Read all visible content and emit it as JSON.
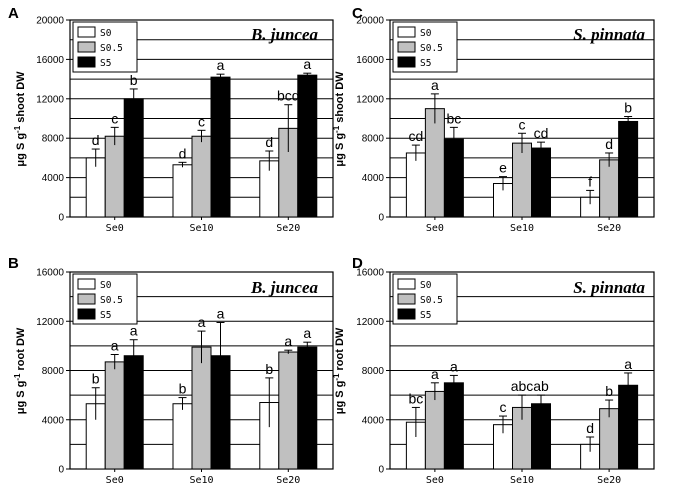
{
  "chart_data": [
    {
      "type": "bar",
      "panel": "A",
      "title": "B. juncea",
      "ylabel_parts": [
        "μg S g",
        "-1",
        " shoot DW"
      ],
      "ylim": [
        0,
        20000
      ],
      "yticks": [
        0,
        4000,
        8000,
        12000,
        16000,
        20000
      ],
      "categories": [
        "Se0",
        "Se10",
        "Se20"
      ],
      "series": [
        {
          "name": "S0",
          "color": "#ffffff",
          "values": [
            6000,
            5300,
            5700
          ],
          "errors": [
            900,
            250,
            1000
          ],
          "labels": [
            "d",
            "d",
            "d"
          ]
        },
        {
          "name": "S0.5",
          "color": "#c0c0c0",
          "values": [
            8200,
            8200,
            9000
          ],
          "errors": [
            900,
            600,
            2400
          ],
          "labels": [
            "c",
            "c",
            "bcd"
          ]
        },
        {
          "name": "S5",
          "color": "#000000",
          "values": [
            12000,
            14200,
            14400
          ],
          "errors": [
            1000,
            300,
            200
          ],
          "labels": [
            "b",
            "a",
            "a"
          ]
        }
      ]
    },
    {
      "type": "bar",
      "panel": "C",
      "title": "S. pinnata",
      "ylabel_parts": [
        "μg S g",
        "-1",
        " shoot DW"
      ],
      "ylim": [
        0,
        20000
      ],
      "yticks": [
        0,
        4000,
        8000,
        12000,
        16000,
        20000
      ],
      "categories": [
        "Se0",
        "Se10",
        "Se20"
      ],
      "series": [
        {
          "name": "S0",
          "color": "#ffffff",
          "values": [
            6500,
            3400,
            2000
          ],
          "errors": [
            800,
            700,
            700
          ],
          "labels": [
            "cd",
            "e",
            "f"
          ]
        },
        {
          "name": "S0.5",
          "color": "#c0c0c0",
          "values": [
            11000,
            7500,
            5800
          ],
          "errors": [
            1500,
            1000,
            700
          ],
          "labels": [
            "a",
            "c",
            "d"
          ]
        },
        {
          "name": "S5",
          "color": "#000000",
          "values": [
            7900,
            7000,
            9700
          ],
          "errors": [
            1200,
            600,
            500
          ],
          "labels": [
            "bc",
            "cd",
            "b"
          ]
        }
      ]
    },
    {
      "type": "bar",
      "panel": "B",
      "title": "B. juncea",
      "ylabel_parts": [
        "μg S g",
        "-1",
        " root DW"
      ],
      "ylim": [
        0,
        16000
      ],
      "yticks": [
        0,
        4000,
        8000,
        12000,
        16000
      ],
      "categories": [
        "Se0",
        "Se10",
        "Se20"
      ],
      "series": [
        {
          "name": "S0",
          "color": "#ffffff",
          "values": [
            5300,
            5300,
            5400
          ],
          "errors": [
            1300,
            500,
            2000
          ],
          "labels": [
            "b",
            "b",
            "b"
          ]
        },
        {
          "name": "S0.5",
          "color": "#c0c0c0",
          "values": [
            8700,
            9900,
            9500
          ],
          "errors": [
            600,
            1300,
            150
          ],
          "labels": [
            "a",
            "a",
            "a"
          ]
        },
        {
          "name": "S5",
          "color": "#000000",
          "values": [
            9200,
            9200,
            9900
          ],
          "errors": [
            1300,
            2700,
            400
          ],
          "labels": [
            "a",
            "a",
            "a"
          ]
        }
      ]
    },
    {
      "type": "bar",
      "panel": "D",
      "title": "S. pinnata",
      "ylabel_parts": [
        "μg S g",
        "-1",
        " root DW"
      ],
      "ylim": [
        0,
        16000
      ],
      "yticks": [
        0,
        4000,
        8000,
        12000,
        16000
      ],
      "categories": [
        "Se0",
        "Se10",
        "Se20"
      ],
      "series": [
        {
          "name": "S0",
          "color": "#ffffff",
          "values": [
            3800,
            3600,
            2000
          ],
          "errors": [
            1200,
            700,
            600
          ],
          "labels": [
            "bc",
            "c",
            "d"
          ]
        },
        {
          "name": "S0.5",
          "color": "#c0c0c0",
          "values": [
            6300,
            5000,
            4900
          ],
          "errors": [
            700,
            1000,
            700
          ],
          "labels": [
            "a",
            "abc",
            "b"
          ]
        },
        {
          "name": "S5",
          "color": "#000000",
          "values": [
            7000,
            5300,
            6800
          ],
          "errors": [
            600,
            700,
            1000
          ],
          "labels": [
            "a",
            "ab",
            "a"
          ]
        }
      ]
    }
  ]
}
